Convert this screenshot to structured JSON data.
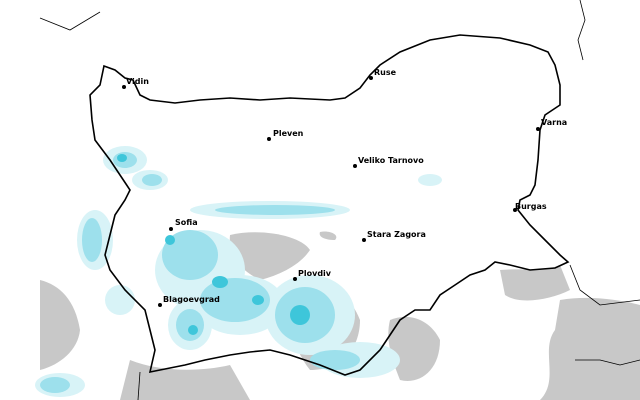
{
  "colors": {
    "land_gray": "#c8c8c8",
    "precip_light": "#d8f3f7",
    "precip_mid": "#9de0ec",
    "precip_strong": "#3ec6da",
    "border": "#000000"
  },
  "cities": [
    {
      "name": "Vidin"
    },
    {
      "name": "Ruse"
    },
    {
      "name": "Pleven"
    },
    {
      "name": "Varna"
    },
    {
      "name": "Veliko Tarnovo"
    },
    {
      "name": "Sofia"
    },
    {
      "name": "Burgas"
    },
    {
      "name": "Stara Zagora"
    },
    {
      "name": "Plovdiv"
    },
    {
      "name": "Blagoevgrad"
    }
  ]
}
